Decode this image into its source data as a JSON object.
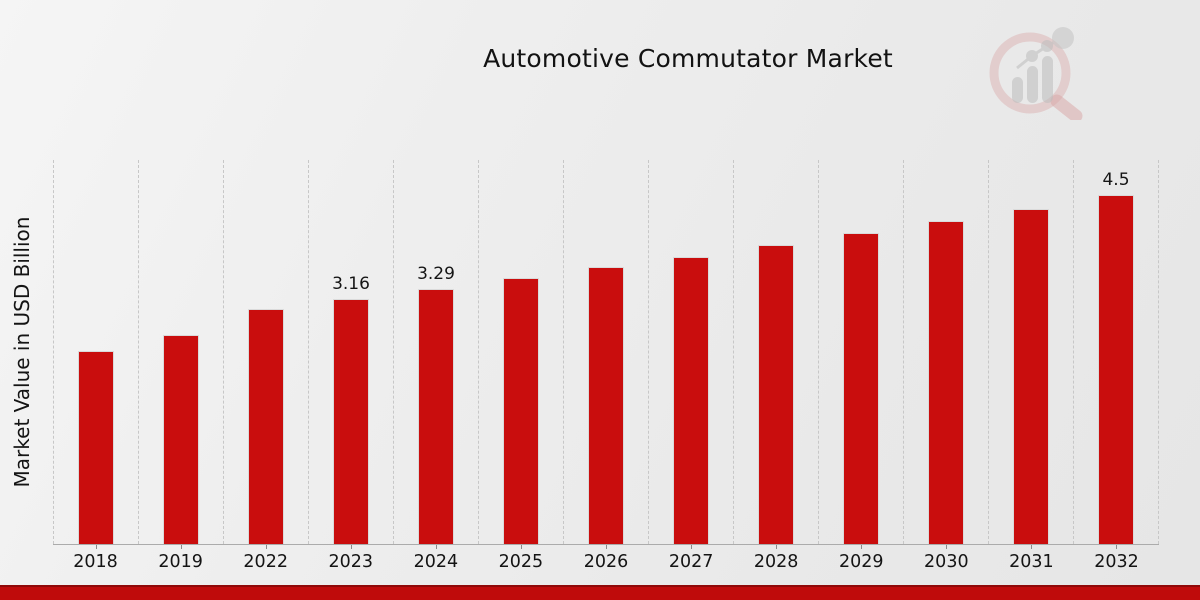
{
  "title": "Automotive Commutator Market",
  "y_axis_label": "Market Value in USD Billion",
  "branding": {
    "logo_name": "market-research-chart-magnifier-watermark"
  },
  "colors": {
    "bar": "#c90d0d",
    "bar_border": "#dadada",
    "banner": "#bf0b0b",
    "banner_edge": "#8f0909",
    "gridline": "#c7c7c7",
    "axis_line": "#ababab",
    "text": "#141414",
    "background_light": "#f5f5f5",
    "background_dark": "#e6e6e6",
    "watermark_pink": "#d9a6a6",
    "watermark_gray": "#bdbdbd"
  },
  "chart_data": {
    "type": "bar",
    "title": "Automotive Commutator Market",
    "xlabel": "",
    "ylabel": "Market Value in USD Billion",
    "categories": [
      "2018",
      "2019",
      "2022",
      "2023",
      "2024",
      "2025",
      "2026",
      "2027",
      "2028",
      "2029",
      "2030",
      "2031",
      "2032"
    ],
    "values": [
      2.49,
      2.7,
      3.04,
      3.16,
      3.29,
      3.43,
      3.57,
      3.71,
      3.86,
      4.02,
      4.17,
      4.33,
      4.5
    ],
    "data_labels": [
      "",
      "",
      "",
      "3.16",
      "3.29",
      "",
      "",
      "",
      "",
      "",
      "",
      "",
      "4.5"
    ],
    "ylim": [
      0,
      4.97
    ],
    "y_ticks_visible": false,
    "grid": "vertical-dashed",
    "legend": "none",
    "bar_color": "#c90d0d"
  }
}
